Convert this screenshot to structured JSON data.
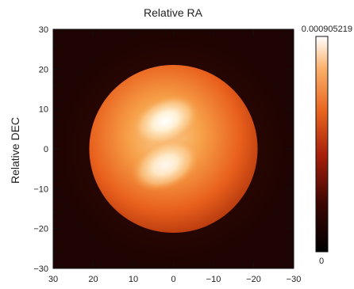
{
  "chart_data": {
    "type": "heatmap",
    "title": "",
    "xlabel": "Relative RA",
    "ylabel": "Relative DEC",
    "xlim": [
      30,
      -30
    ],
    "ylim": [
      -30,
      30
    ],
    "x_ticks": [
      30,
      20,
      10,
      0,
      -10,
      -20,
      -30
    ],
    "y_ticks": [
      -30,
      -20,
      -10,
      0,
      10,
      20,
      30
    ],
    "x_tick_labels": [
      "30",
      "20",
      "10",
      "0",
      "−10",
      "−20",
      "−30"
    ],
    "y_tick_labels": [
      "−30",
      "−20",
      "−10",
      "0",
      "10",
      "20",
      "30"
    ],
    "colorbar": {
      "max_label": "0.000905219",
      "min_label": "0",
      "max": 0.000905219,
      "min": 0,
      "colormap": "black-red-orange-white"
    },
    "disk": {
      "center": [
        0,
        0
      ],
      "radius": 21
    },
    "hotspots": [
      {
        "x": 2,
        "y": 7,
        "relative_intensity": 1.0
      },
      {
        "x": 2,
        "y": -4,
        "relative_intensity": 0.9
      }
    ],
    "colors": {
      "background": "#1e0402",
      "disk_edge": "#c03c10",
      "disk_mid": "#f07a28",
      "disk_bright": "#ffffff"
    }
  }
}
